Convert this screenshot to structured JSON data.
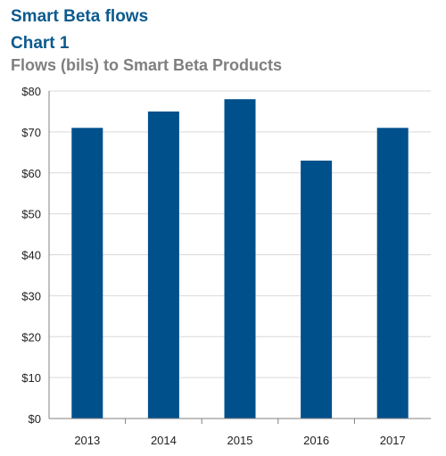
{
  "header": {
    "kicker": "Smart Beta flows",
    "chart_label": "Chart 1"
  },
  "colors": {
    "heading": "#0b5a8e",
    "subtitle": "#7f7f7f",
    "bar": "#00508c",
    "grid": "#d9d9d9",
    "axis": "#808080"
  },
  "chart_data": {
    "type": "bar",
    "title": "Flows (bils) to Smart Beta Products",
    "categories": [
      "2013",
      "2014",
      "2015",
      "2016",
      "2017"
    ],
    "values": [
      71,
      75,
      78,
      63,
      71
    ],
    "ylim": [
      0,
      80
    ],
    "yticks": [
      0,
      10,
      20,
      30,
      40,
      50,
      60,
      70,
      80
    ],
    "ytick_labels": [
      "$0",
      "$10",
      "$20",
      "$30",
      "$40",
      "$50",
      "$60",
      "$70",
      "$80"
    ],
    "xlabel": "",
    "ylabel": "",
    "grid": true,
    "legend": "none"
  }
}
